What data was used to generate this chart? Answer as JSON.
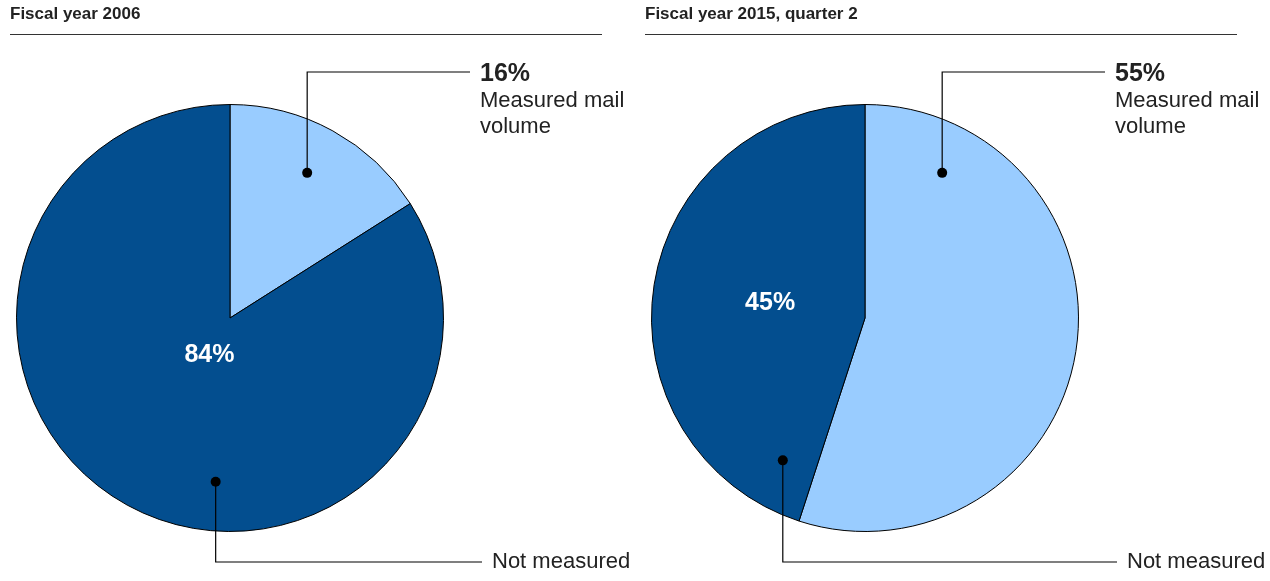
{
  "chart_data": [
    {
      "type": "pie",
      "title": "Fiscal year 2006",
      "categories": [
        "Measured mail volume",
        "Not measured"
      ],
      "values": [
        16,
        84
      ],
      "colors": [
        "#99ccff",
        "#034e8f"
      ],
      "value_labels": [
        "16%",
        "84%"
      ]
    },
    {
      "type": "pie",
      "title": "Fiscal year 2015, quarter 2",
      "categories": [
        "Measured mail volume",
        "Not measured"
      ],
      "values": [
        55,
        45
      ],
      "colors": [
        "#99ccff",
        "#034e8f"
      ],
      "value_labels": [
        "55%",
        "45%"
      ]
    }
  ]
}
